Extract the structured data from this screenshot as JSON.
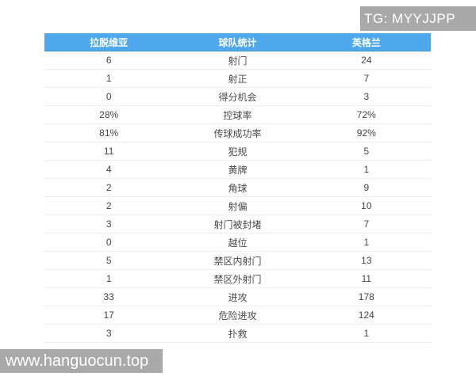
{
  "colors": {
    "header_bg": "#4fa8ec",
    "header_text": "#ffffff",
    "watermark_bg": "#a9a9a9",
    "watermark_text": "#ffffff",
    "row_text": "#444444",
    "row_border": "#ededed"
  },
  "watermark_top": {
    "label": "TG: MYYJJPP"
  },
  "watermark_bottom": {
    "label": "www.hanguocun.top"
  },
  "table": {
    "columns": [
      "拉脱维亚",
      "球队统计",
      "英格兰"
    ],
    "rows": [
      {
        "home": "6",
        "stat": "射门",
        "away": "24"
      },
      {
        "home": "1",
        "stat": "射正",
        "away": "7"
      },
      {
        "home": "0",
        "stat": "得分机会",
        "away": "3"
      },
      {
        "home": "28%",
        "stat": "控球率",
        "away": "72%"
      },
      {
        "home": "81%",
        "stat": "传球成功率",
        "away": "92%"
      },
      {
        "home": "11",
        "stat": "犯规",
        "away": "5"
      },
      {
        "home": "4",
        "stat": "黄牌",
        "away": "1"
      },
      {
        "home": "2",
        "stat": "角球",
        "away": "9"
      },
      {
        "home": "2",
        "stat": "射偏",
        "away": "10"
      },
      {
        "home": "3",
        "stat": "射门被封堵",
        "away": "7"
      },
      {
        "home": "0",
        "stat": "越位",
        "away": "1"
      },
      {
        "home": "5",
        "stat": "禁区内射门",
        "away": "13"
      },
      {
        "home": "1",
        "stat": "禁区外射门",
        "away": "11"
      },
      {
        "home": "33",
        "stat": "进攻",
        "away": "178"
      },
      {
        "home": "17",
        "stat": "危险进攻",
        "away": "124"
      },
      {
        "home": "3",
        "stat": "扑救",
        "away": "1"
      }
    ]
  }
}
